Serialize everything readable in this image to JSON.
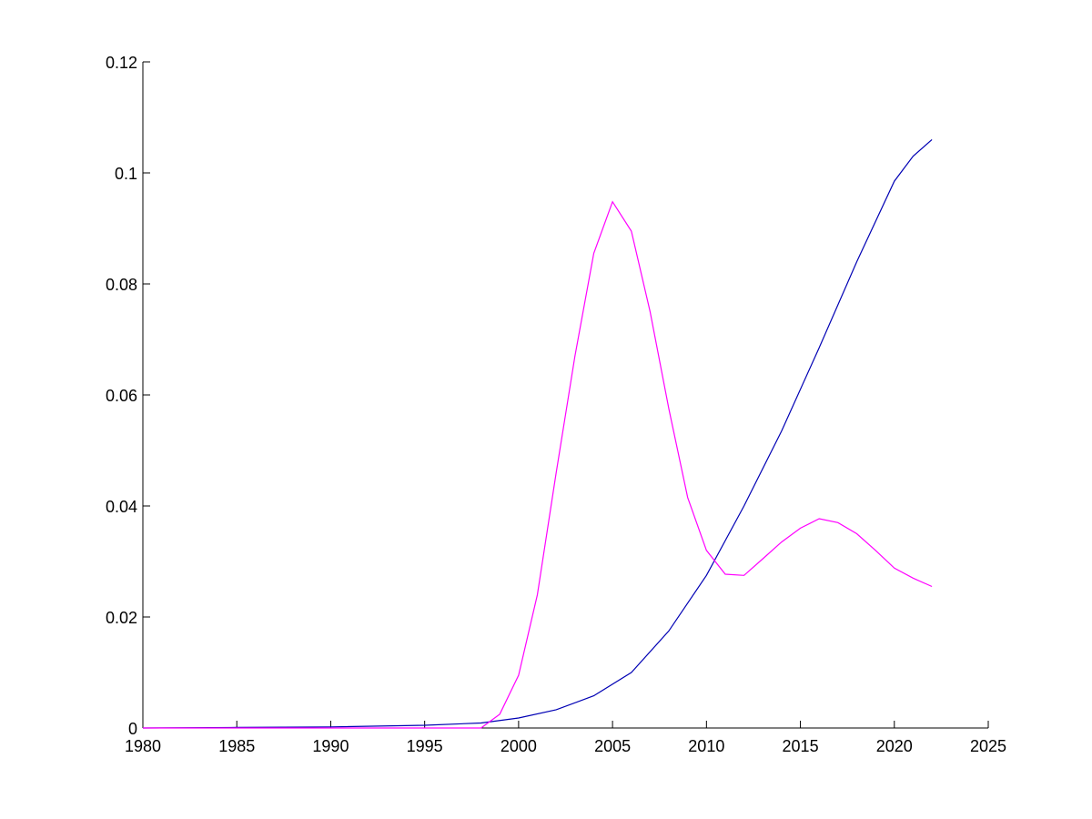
{
  "chart_data": {
    "type": "line",
    "title": "",
    "xlabel": "",
    "ylabel": "",
    "xlim": [
      1980,
      2025
    ],
    "ylim": [
      0,
      0.12
    ],
    "grid": false,
    "legend": "none",
    "x_ticks": [
      "1980",
      "1985",
      "1990",
      "1995",
      "2000",
      "2005",
      "2010",
      "2015",
      "2020",
      "2025"
    ],
    "y_ticks": [
      "0",
      "0.02",
      "0.04",
      "0.06",
      "0.08",
      "0.1",
      "0.12"
    ],
    "x_tick_values": [
      1980,
      1985,
      1990,
      1995,
      2000,
      2005,
      2010,
      2015,
      2020,
      2025
    ],
    "y_tick_values": [
      0,
      0.02,
      0.04,
      0.06,
      0.08,
      0.1,
      0.12
    ],
    "series": [
      {
        "color": "#0000b4",
        "x": [
          1980,
          1985,
          1990,
          1995,
          1998,
          2000,
          2002,
          2004,
          2006,
          2008,
          2010,
          2012,
          2014,
          2016,
          2018,
          2020,
          2021,
          2022
        ],
        "y": [
          0.0,
          0.0001,
          0.0002,
          0.0005,
          0.0009,
          0.0018,
          0.0033,
          0.0058,
          0.01,
          0.0175,
          0.0275,
          0.04,
          0.0535,
          0.0685,
          0.084,
          0.0985,
          0.103,
          0.106
        ]
      },
      {
        "color": "#ff00ff",
        "x": [
          1980,
          1998,
          1999,
          2000,
          2001,
          2002,
          2003,
          2004,
          2005,
          2006,
          2007,
          2008,
          2009,
          2010,
          2011,
          2012,
          2013,
          2014,
          2015,
          2016,
          2017,
          2018,
          2019,
          2020,
          2021,
          2022
        ],
        "y": [
          0.0,
          0.0,
          0.0025,
          0.0095,
          0.024,
          0.046,
          0.067,
          0.0855,
          0.0948,
          0.0895,
          0.075,
          0.0575,
          0.0415,
          0.032,
          0.0277,
          0.0275,
          0.0305,
          0.0335,
          0.036,
          0.0377,
          0.037,
          0.035,
          0.032,
          0.0288,
          0.027,
          0.0255
        ]
      }
    ]
  }
}
